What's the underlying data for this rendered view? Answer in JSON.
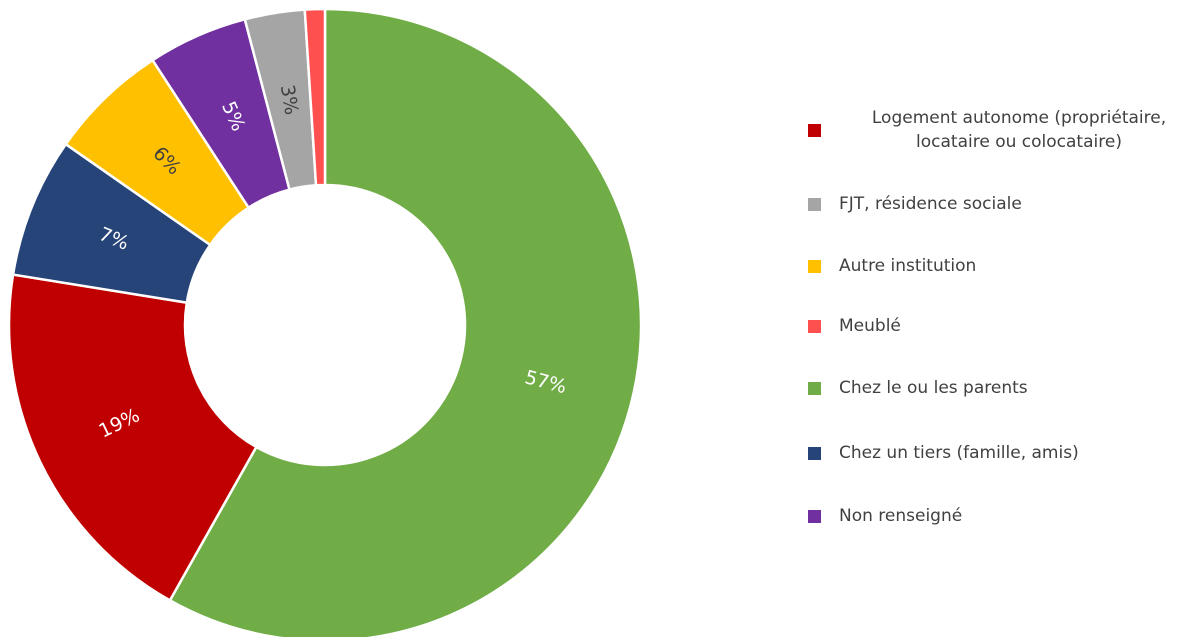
{
  "chart_data": {
    "type": "donut",
    "categories": [
      "Logement autonome (propriétaire, locataire ou colocataire)",
      "FJT, résidence sociale",
      "Autre institution",
      "Meublé",
      "Chez le ou les parents",
      "Chez un tiers (famille, amis)",
      "Non renseigné"
    ],
    "values": [
      19,
      3,
      6,
      1,
      57,
      7,
      5
    ],
    "value_labels": [
      "19%",
      "3%",
      "6%",
      null,
      "57%",
      "7%",
      "5%"
    ],
    "colors": [
      "#c00000",
      "#a5a5a5",
      "#ffc000",
      "#ff5050",
      "#70ad47",
      "#264478",
      "#7030a0"
    ],
    "legend": "right"
  }
}
